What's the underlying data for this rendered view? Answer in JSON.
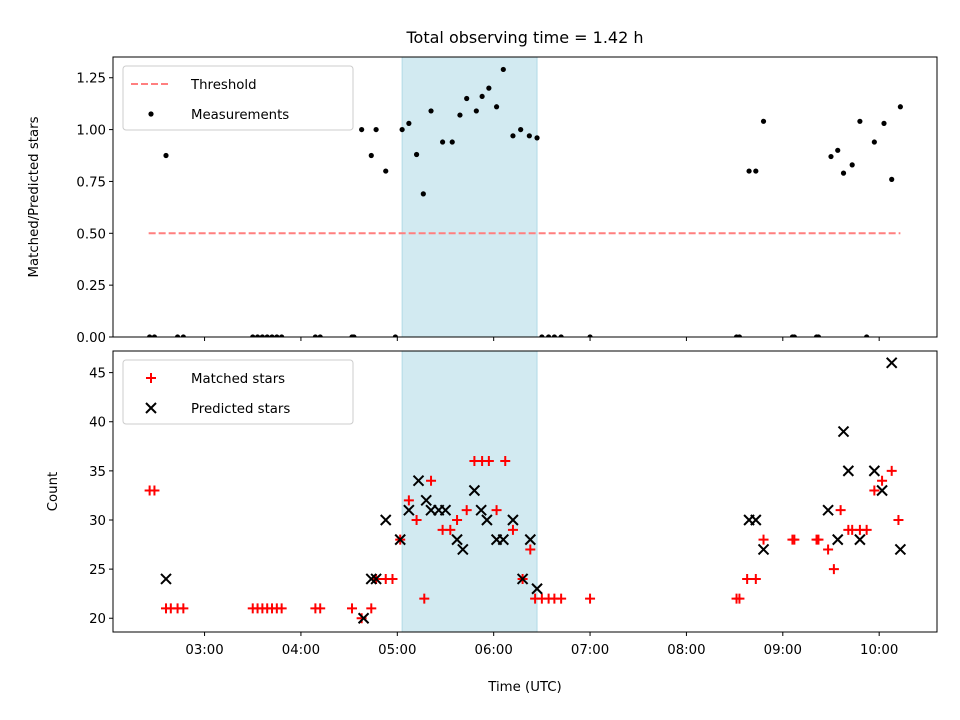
{
  "chart_data": [
    {
      "type": "scatter",
      "title": "Total observing time = 1.42 h",
      "xlabel": "",
      "ylabel": "Matched/Predicted stars",
      "ylim": [
        0,
        1.35
      ],
      "yticks": [
        "0.00",
        "0.25",
        "0.50",
        "0.75",
        "1.00",
        "1.25"
      ],
      "ytick_values": [
        0,
        0.25,
        0.5,
        0.75,
        1.0,
        1.25
      ],
      "xlim_hours": [
        2.05,
        10.6
      ],
      "highlight_span_hours": [
        5.05,
        6.45
      ],
      "highlight_color": "#add8e6",
      "legend_location": "upper left",
      "series": [
        {
          "name": "Threshold",
          "kind": "dashed-line",
          "color": "#ff7f7f",
          "x": [
            2.42,
            10.22
          ],
          "y": [
            0.5,
            0.5
          ]
        },
        {
          "name": "Measurements",
          "kind": "dot",
          "color": "#000000",
          "x": [
            2.43,
            2.48,
            2.6,
            2.72,
            2.78,
            3.5,
            3.55,
            3.6,
            3.65,
            3.7,
            3.75,
            3.8,
            4.15,
            4.2,
            4.53,
            4.55,
            4.63,
            4.73,
            4.78,
            4.88,
            4.98,
            5.05,
            5.12,
            5.2,
            5.27,
            5.35,
            5.47,
            5.57,
            5.65,
            5.72,
            5.82,
            5.88,
            5.95,
            6.03,
            6.1,
            6.2,
            6.28,
            6.37,
            6.45,
            6.5,
            6.57,
            6.63,
            6.7,
            7.0,
            8.52,
            8.55,
            8.65,
            8.72,
            8.8,
            9.1,
            9.12,
            9.35,
            9.37,
            9.5,
            9.57,
            9.63,
            9.72,
            9.8,
            9.87,
            9.95,
            10.05,
            10.13,
            10.22
          ],
          "y": [
            0,
            0,
            0.875,
            0,
            0,
            0,
            0,
            0,
            0,
            0,
            0,
            0,
            0,
            0,
            0,
            0,
            1.0,
            0.875,
            1.0,
            0.8,
            0,
            1.0,
            1.03,
            0.88,
            0.69,
            1.09,
            0.94,
            0.94,
            1.07,
            1.15,
            1.09,
            1.16,
            1.2,
            1.11,
            1.29,
            0.97,
            1.0,
            0.97,
            0.96,
            0,
            0,
            0,
            0,
            0,
            0,
            0,
            0.8,
            0.8,
            1.04,
            0,
            0,
            0,
            0,
            0.87,
            0.9,
            0.79,
            0.83,
            1.04,
            0,
            0.94,
            1.03,
            0.76,
            1.11
          ]
        }
      ]
    },
    {
      "type": "scatter",
      "title": "",
      "xlabel": "Time (UTC)",
      "ylabel": "Count",
      "ylim": [
        18.6,
        47.2
      ],
      "yticks": [
        "20",
        "25",
        "30",
        "35",
        "40",
        "45"
      ],
      "ytick_values": [
        20,
        25,
        30,
        35,
        40,
        45
      ],
      "xlim_hours": [
        2.05,
        10.6
      ],
      "xticks": [
        "03:00",
        "04:00",
        "05:00",
        "06:00",
        "07:00",
        "08:00",
        "09:00",
        "10:00"
      ],
      "xtick_hours": [
        3,
        4,
        5,
        6,
        7,
        8,
        9,
        10
      ],
      "highlight_span_hours": [
        5.05,
        6.45
      ],
      "highlight_color": "#add8e6",
      "legend_location": "upper left",
      "series": [
        {
          "name": "Matched stars",
          "kind": "plus",
          "color": "#ff0000",
          "x": [
            2.43,
            2.48,
            2.6,
            2.65,
            2.72,
            2.78,
            3.5,
            3.55,
            3.6,
            3.65,
            3.7,
            3.75,
            3.8,
            4.15,
            4.2,
            4.53,
            4.63,
            4.73,
            4.78,
            4.88,
            4.95,
            5.03,
            5.12,
            5.2,
            5.28,
            5.35,
            5.47,
            5.55,
            5.62,
            5.72,
            5.8,
            5.88,
            5.95,
            6.03,
            6.12,
            6.2,
            6.3,
            6.38,
            6.43,
            6.5,
            6.57,
            6.63,
            6.7,
            7.0,
            8.52,
            8.55,
            8.63,
            8.72,
            8.8,
            9.1,
            9.12,
            9.35,
            9.37,
            9.47,
            9.53,
            9.6,
            9.68,
            9.72,
            9.8,
            9.87,
            9.95,
            10.03,
            10.13,
            10.2
          ],
          "y": [
            33,
            33,
            21,
            21,
            21,
            21,
            21,
            21,
            21,
            21,
            21,
            21,
            21,
            21,
            21,
            21,
            20,
            21,
            24,
            24,
            24,
            28,
            32,
            30,
            22,
            34,
            29,
            29,
            30,
            31,
            36,
            36,
            36,
            31,
            36,
            29,
            24,
            27,
            22,
            22,
            22,
            22,
            22,
            22,
            22,
            22,
            24,
            24,
            28,
            28,
            28,
            28,
            28,
            27,
            25,
            31,
            29,
            29,
            29,
            29,
            33,
            34,
            35,
            30
          ]
        },
        {
          "name": "Predicted stars",
          "kind": "cross",
          "color": "#000000",
          "x": [
            2.6,
            4.65,
            4.73,
            4.78,
            4.88,
            5.03,
            5.12,
            5.22,
            5.3,
            5.35,
            5.43,
            5.5,
            5.62,
            5.68,
            5.8,
            5.87,
            5.93,
            6.03,
            6.1,
            6.2,
            6.3,
            6.38,
            6.45,
            8.65,
            8.72,
            8.8,
            9.47,
            9.57,
            9.63,
            9.68,
            9.8,
            9.95,
            10.03,
            10.13,
            10.22
          ],
          "y": [
            24,
            20,
            24,
            24,
            30,
            28,
            31,
            34,
            32,
            31,
            31,
            31,
            28,
            27,
            33,
            31,
            30,
            28,
            28,
            30,
            24,
            28,
            23,
            30,
            30,
            27,
            31,
            28,
            39,
            35,
            28,
            35,
            33,
            46,
            27
          ]
        }
      ]
    }
  ]
}
